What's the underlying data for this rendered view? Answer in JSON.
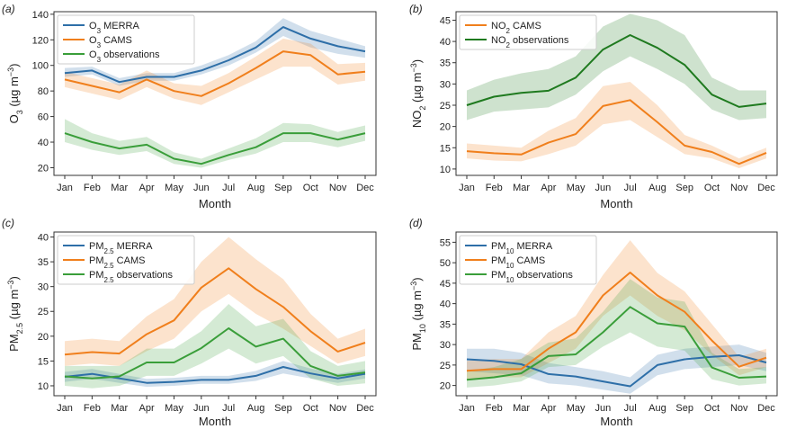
{
  "colors": {
    "merra": "#2e6fa8",
    "cams": "#f07f1c",
    "obs": "#3a9e3a",
    "no2obs": "#1f7a1f"
  },
  "chart_data": [
    {
      "type": "line",
      "panel_label": "(a)",
      "pollutant": "O3",
      "xlabel": "Month",
      "ylabel": {
        "base": "O",
        "sub": "3",
        "unit": "(µg m",
        "sup": "−3",
        "close": ")"
      },
      "ylim": [
        14,
        142
      ],
      "yticks": [
        20,
        40,
        60,
        80,
        100,
        120,
        140
      ],
      "categories": [
        "Jan",
        "Feb",
        "Mar",
        "Apr",
        "May",
        "Jun",
        "Jul",
        "Aug",
        "Sep",
        "Oct",
        "Nov",
        "Dec"
      ],
      "legend_position": "top-left",
      "series": [
        {
          "name": "MERRA",
          "legend": {
            "base": "O",
            "sub": "3",
            "rest": " MERRA"
          },
          "color_key": "merra",
          "values": [
            94,
            96,
            87,
            91,
            91,
            96,
            104,
            114,
            130,
            121,
            115,
            111
          ],
          "lower": [
            91,
            93,
            84,
            88,
            88,
            93,
            100,
            110,
            123,
            114,
            109,
            106
          ],
          "upper": [
            98,
            99,
            90,
            94,
            94,
            100,
            108,
            119,
            137,
            127,
            121,
            115
          ]
        },
        {
          "name": "CAMS",
          "legend": {
            "base": "O",
            "sub": "3",
            "rest": " CAMS"
          },
          "color_key": "cams",
          "values": [
            89,
            84,
            79,
            89,
            80,
            76,
            86,
            98,
            111,
            108,
            93,
            95
          ],
          "lower": [
            83,
            78,
            73,
            83,
            74,
            69,
            79,
            89,
            99,
            99,
            85,
            88
          ],
          "upper": [
            95,
            90,
            85,
            96,
            86,
            84,
            94,
            107,
            121,
            117,
            101,
            102
          ]
        },
        {
          "name": "observations",
          "legend": {
            "base": "O",
            "sub": "3",
            "rest": " observations"
          },
          "color_key": "obs",
          "values": [
            47,
            40,
            35,
            38,
            27,
            23,
            30,
            36,
            47,
            47,
            42,
            47
          ],
          "lower": [
            40,
            34,
            30,
            33,
            23,
            20,
            26,
            31,
            40,
            40,
            36,
            41
          ],
          "upper": [
            58,
            47,
            41,
            44,
            32,
            27,
            35,
            43,
            55,
            54,
            48,
            53
          ]
        }
      ]
    },
    {
      "type": "line",
      "panel_label": "(b)",
      "pollutant": "NO2",
      "xlabel": "Month",
      "ylabel": {
        "base": "NO",
        "sub": "2",
        "unit": "(µg m",
        "sup": "−3",
        "close": ")"
      },
      "ylim": [
        8.5,
        47
      ],
      "yticks": [
        10,
        15,
        20,
        25,
        30,
        35,
        40,
        45
      ],
      "categories": [
        "Jan",
        "Feb",
        "Mar",
        "Apr",
        "May",
        "Jun",
        "Jul",
        "Aug",
        "Sep",
        "Oct",
        "Nov",
        "Dec"
      ],
      "legend_position": "top-left",
      "series": [
        {
          "name": "CAMS",
          "legend": {
            "base": "NO",
            "sub": "2",
            "rest": " CAMS"
          },
          "color_key": "cams",
          "values": [
            14.2,
            13.7,
            13.4,
            16.2,
            18.2,
            24.8,
            26.2,
            21.0,
            15.5,
            14.0,
            11.2,
            13.8
          ],
          "lower": [
            12.5,
            12.0,
            11.8,
            13.5,
            15.5,
            20.5,
            21.5,
            17.5,
            13.5,
            12.5,
            10.2,
            12.5
          ],
          "upper": [
            16.0,
            15.5,
            15.0,
            19.0,
            22.0,
            29.5,
            30.5,
            25.0,
            18.0,
            15.5,
            12.5,
            15.0
          ]
        },
        {
          "name": "observations",
          "legend": {
            "base": "NO",
            "sub": "2",
            "rest": " observations"
          },
          "color_key": "no2obs",
          "values": [
            25.0,
            27.0,
            27.9,
            28.4,
            31.5,
            38.1,
            41.5,
            38.5,
            34.5,
            27.5,
            24.6,
            25.4
          ],
          "lower": [
            21.5,
            23.5,
            24.0,
            24.5,
            27.5,
            33.0,
            36.5,
            33.5,
            30.0,
            24.0,
            21.5,
            22.0
          ],
          "upper": [
            28.5,
            31.0,
            32.5,
            33.5,
            36.5,
            43.5,
            46.5,
            45.0,
            41.5,
            31.5,
            28.5,
            28.5
          ]
        }
      ]
    },
    {
      "type": "line",
      "panel_label": "(c)",
      "pollutant": "PM2.5",
      "xlabel": "Month",
      "ylabel": {
        "base": "PM",
        "sub": "2.5",
        "unit": "(µg m",
        "sup": "−3",
        "close": ")"
      },
      "ylim": [
        8,
        41
      ],
      "yticks": [
        10,
        15,
        20,
        25,
        30,
        35,
        40
      ],
      "categories": [
        "Jan",
        "Feb",
        "Mar",
        "Apr",
        "May",
        "Jun",
        "Jul",
        "Aug",
        "Sep",
        "Oct",
        "Nov",
        "Dec"
      ],
      "legend_position": "top-left",
      "series": [
        {
          "name": "MERRA",
          "legend": {
            "base": "PM",
            "sub": "2.5",
            "rest": " MERRA"
          },
          "color_key": "merra",
          "values": [
            11.8,
            12.4,
            11.5,
            10.6,
            10.8,
            11.2,
            11.2,
            12.0,
            13.8,
            12.5,
            11.5,
            12.4
          ],
          "lower": [
            10.8,
            11.4,
            10.6,
            9.8,
            10.0,
            10.4,
            10.4,
            11.0,
            12.5,
            11.5,
            10.6,
            11.5
          ],
          "upper": [
            12.8,
            13.4,
            12.4,
            11.4,
            11.6,
            12.0,
            12.0,
            13.0,
            15.0,
            13.5,
            12.4,
            13.3
          ]
        },
        {
          "name": "CAMS",
          "legend": {
            "base": "PM",
            "sub": "2.5",
            "rest": " CAMS"
          },
          "color_key": "cams",
          "values": [
            16.3,
            16.8,
            16.5,
            20.4,
            23.2,
            29.8,
            33.7,
            29.5,
            25.9,
            21.0,
            16.9,
            18.7
          ],
          "lower": [
            14.0,
            14.5,
            14.0,
            17.0,
            19.5,
            25.0,
            28.5,
            24.5,
            21.5,
            18.0,
            14.5,
            16.0
          ],
          "upper": [
            19.0,
            19.5,
            19.0,
            24.0,
            27.5,
            35.0,
            40.0,
            35.5,
            31.5,
            24.5,
            19.5,
            21.5
          ]
        },
        {
          "name": "observations",
          "legend": {
            "base": "PM",
            "sub": "2.5",
            "rest": " observations"
          },
          "color_key": "obs",
          "values": [
            11.9,
            11.5,
            11.9,
            14.7,
            14.7,
            17.6,
            21.6,
            17.9,
            19.5,
            14.0,
            12.0,
            12.7
          ],
          "lower": [
            10.0,
            9.5,
            10.0,
            12.0,
            12.0,
            14.5,
            17.5,
            14.5,
            16.0,
            11.5,
            10.0,
            10.5
          ],
          "upper": [
            14.0,
            14.0,
            14.0,
            17.5,
            17.5,
            21.0,
            26.5,
            22.0,
            23.5,
            17.0,
            14.0,
            15.0
          ]
        }
      ]
    },
    {
      "type": "line",
      "panel_label": "(d)",
      "pollutant": "PM10",
      "xlabel": "Month",
      "ylabel": {
        "base": "PM",
        "sub": "10",
        "unit": "(µg m",
        "sup": "−3",
        "close": ")"
      },
      "ylim": [
        17.5,
        57.5
      ],
      "yticks": [
        20,
        25,
        30,
        35,
        40,
        45,
        50,
        55
      ],
      "categories": [
        "Jan",
        "Feb",
        "Mar",
        "Apr",
        "May",
        "Jun",
        "Jul",
        "Aug",
        "Sep",
        "Oct",
        "Nov",
        "Dec"
      ],
      "legend_position": "top-left",
      "series": [
        {
          "name": "MERRA",
          "legend": {
            "base": "PM",
            "sub": "10",
            "rest": " MERRA"
          },
          "color_key": "merra",
          "values": [
            26.4,
            26.0,
            25.2,
            22.8,
            22.2,
            21.0,
            19.8,
            25.0,
            26.4,
            27.0,
            27.4,
            25.6
          ],
          "lower": [
            23.5,
            23.0,
            22.5,
            20.5,
            20.0,
            19.0,
            18.0,
            22.5,
            24.0,
            24.5,
            25.0,
            23.5
          ],
          "upper": [
            29.0,
            29.0,
            28.0,
            25.5,
            24.5,
            23.5,
            22.0,
            27.5,
            29.0,
            29.5,
            30.0,
            28.0
          ]
        },
        {
          "name": "CAMS",
          "legend": {
            "base": "PM",
            "sub": "10",
            "rest": " CAMS"
          },
          "color_key": "cams",
          "values": [
            23.6,
            24.0,
            24.0,
            29.0,
            33.0,
            42.0,
            47.6,
            42.0,
            38.0,
            31.0,
            24.6,
            26.8
          ],
          "lower": [
            21.5,
            22.0,
            22.0,
            25.5,
            29.0,
            37.0,
            42.0,
            37.0,
            33.5,
            27.5,
            22.5,
            24.5
          ],
          "upper": [
            26.0,
            26.5,
            26.5,
            33.0,
            37.0,
            47.0,
            55.5,
            47.5,
            43.0,
            35.0,
            27.0,
            29.0
          ]
        },
        {
          "name": "observations",
          "legend": {
            "base": "PM",
            "sub": "10",
            "rest": " observations"
          },
          "color_key": "obs",
          "values": [
            21.4,
            22.0,
            23.0,
            27.2,
            27.6,
            33.0,
            39.2,
            35.2,
            34.4,
            24.4,
            21.9,
            22.2
          ],
          "lower": [
            19.5,
            20.0,
            21.0,
            24.5,
            25.0,
            29.5,
            33.0,
            29.5,
            28.5,
            21.5,
            20.0,
            20.5
          ],
          "upper": [
            23.5,
            24.5,
            26.5,
            30.5,
            31.5,
            38.0,
            46.0,
            41.5,
            40.5,
            28.0,
            24.0,
            24.5
          ]
        }
      ]
    }
  ]
}
